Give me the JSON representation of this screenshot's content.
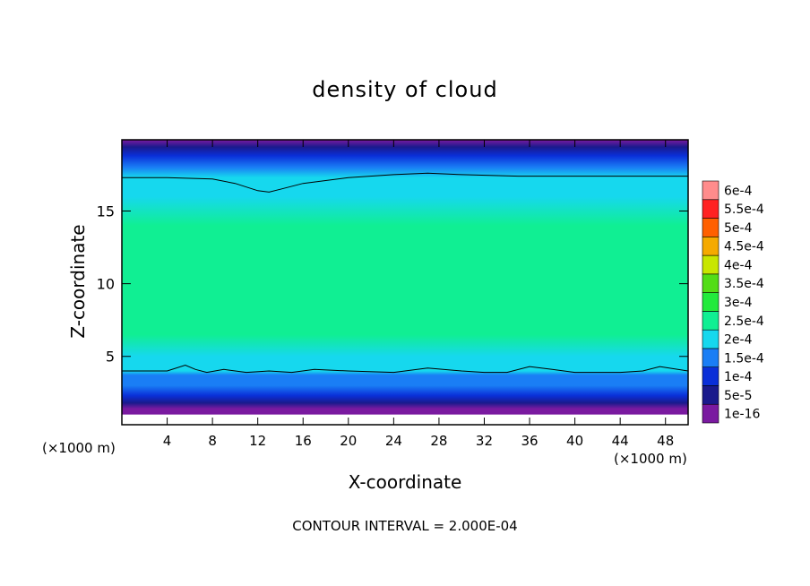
{
  "chart_data": {
    "type": "heatmap",
    "title": "density of cloud",
    "xlabel": "X-coordinate",
    "ylabel": "Z-coordinate",
    "x_unit_label": "(×1000 m)",
    "footer": "CONTOUR INTERVAL = 2.000E-04",
    "xlim": [
      0,
      50
    ],
    "ylim": [
      0.3,
      19.9
    ],
    "x_ticks": [
      "4",
      "8",
      "12",
      "16",
      "20",
      "24",
      "28",
      "32",
      "36",
      "40",
      "44",
      "48"
    ],
    "y_ticks": [
      "5",
      "10",
      "15"
    ],
    "colorbar": {
      "levels": [
        "1e-16",
        "5e-5",
        "1e-4",
        "1.5e-4",
        "2e-4",
        "2.5e-4",
        "3e-4",
        "3.5e-4",
        "4e-4",
        "4.5e-4",
        "5e-4",
        "5.5e-4",
        "6e-4"
      ],
      "colors": [
        "#7a1aa0",
        "#1a1a8c",
        "#0a2fd8",
        "#1a7ef5",
        "#16d8ee",
        "#10ef93",
        "#22ea3c",
        "#52dd16",
        "#c8e600",
        "#f5aa00",
        "#ff6000",
        "#ff2222",
        "#ff8c8c"
      ]
    },
    "profile": {
      "z": [
        0.3,
        1.0,
        1.4,
        1.8,
        2.3,
        3.0,
        3.7,
        4.0,
        5.0,
        6.5,
        8.0,
        10.0,
        12.0,
        14.0,
        16.0,
        17.3,
        18.0,
        18.8,
        19.4,
        19.9
      ],
      "density": [
        0,
        2e-06,
        4e-05,
        8e-05,
        0.00012,
        0.00016,
        0.00019,
        0.00021,
        0.00024,
        0.00027,
        0.000285,
        0.00029,
        0.000285,
        0.00027,
        0.000235,
        0.0002,
        0.00017,
        0.00013,
        8e-05,
        4e-05
      ]
    },
    "contours": [
      {
        "level": 0.0002,
        "x": [
          0,
          4,
          8,
          10,
          12,
          13,
          14,
          16,
          20,
          24,
          27,
          30,
          35,
          40,
          45,
          50
        ],
        "z": [
          17.3,
          17.3,
          17.2,
          16.9,
          16.4,
          16.3,
          16.5,
          16.9,
          17.3,
          17.5,
          17.6,
          17.5,
          17.4,
          17.4,
          17.4,
          17.4
        ]
      },
      {
        "level": 0.0002,
        "x": [
          0,
          4,
          5.6,
          6.5,
          7.5,
          9,
          11,
          13,
          15,
          17,
          20,
          24,
          27,
          30,
          32,
          34,
          36,
          38,
          40,
          44,
          46,
          47.5,
          50
        ],
        "z": [
          4.0,
          4.0,
          4.4,
          4.1,
          3.9,
          4.1,
          3.9,
          4.0,
          3.9,
          4.1,
          4.0,
          3.9,
          4.2,
          4.0,
          3.9,
          3.9,
          4.3,
          4.1,
          3.9,
          3.9,
          4.0,
          4.3,
          4.0
        ]
      }
    ],
    "grid": false,
    "legend": "right"
  }
}
